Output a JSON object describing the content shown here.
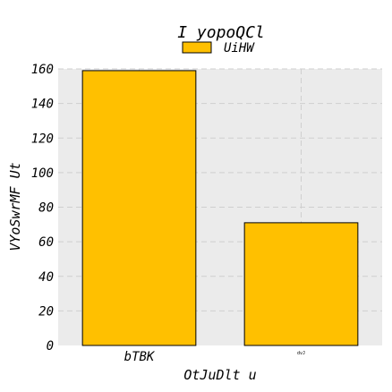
{
  "chart_data": {
    "type": "bar",
    "title": "I yopoQCl",
    "xlabel": "OtJuDlt u",
    "ylabel": "VYoSwrMF Ut",
    "categories": [
      "bTBK",
      "dvJ"
    ],
    "series": [
      {
        "name": "UiHW",
        "values": [
          159,
          71
        ],
        "color": "#ffc000"
      }
    ],
    "ylim": [
      0,
      160
    ],
    "yticks": [
      0,
      20,
      40,
      60,
      80,
      100,
      120,
      140,
      160
    ],
    "grid": true,
    "legend": "top-center",
    "colors": {
      "plot_background": "#ebebeb",
      "grid": "#cfcfcf"
    }
  }
}
